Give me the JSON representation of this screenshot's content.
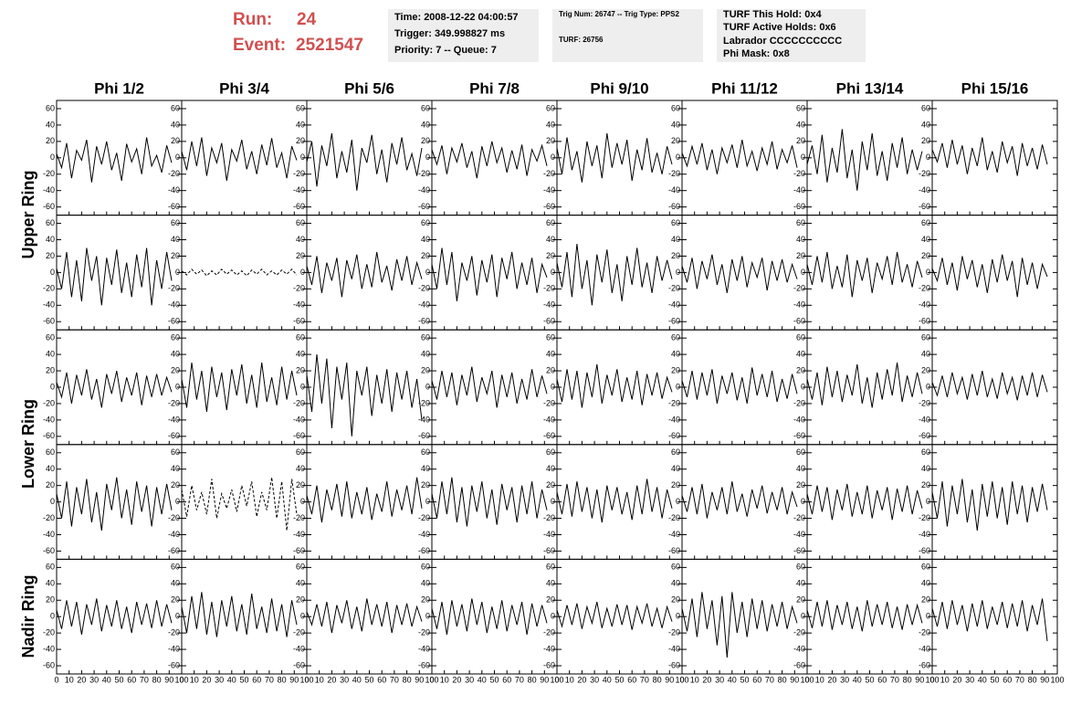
{
  "header": {
    "run_label": "Run:",
    "run": "24",
    "event_label": "Event:",
    "event": "2521547",
    "boxes": [
      [
        "Time: 2008-12-22 04:00:57",
        "Trigger: 349.998827 ms",
        "Priority: 7 -- Queue: 7"
      ],
      [
        "Trig Num: 26747 -- Trig Type: PPS2",
        "TURF: 26756"
      ],
      [
        "TURF This Hold: 0x4",
        "TURF Active Holds: 0x6",
        "Labrador CCCCCCCCCC",
        "Phi Mask: 0x8"
      ]
    ]
  },
  "chart_data": {
    "type": "line",
    "columns": [
      "Phi 1/2",
      "Phi 3/4",
      "Phi 5/6",
      "Phi 7/8",
      "Phi 9/10",
      "Phi 11/12",
      "Phi 13/14",
      "Phi 15/16"
    ],
    "ring_labels": [
      "Upper Ring",
      "Lower Ring",
      "Nadir Ring"
    ],
    "xlim": [
      0,
      100
    ],
    "xticks": [
      0,
      10,
      20,
      30,
      40,
      50,
      60,
      70,
      80,
      90,
      100
    ],
    "ylim": [
      -70,
      70
    ],
    "yticks": [
      -60,
      -40,
      -20,
      0,
      20,
      40,
      60
    ],
    "color": "#000000",
    "x": [
      0,
      4,
      8,
      12,
      16,
      20,
      24,
      28,
      32,
      36,
      40,
      44,
      48,
      52,
      56,
      60,
      64,
      68,
      72,
      76,
      80,
      84,
      88,
      92
    ],
    "panels": [
      {
        "values": [
          5,
          -12,
          18,
          -25,
          9,
          -3,
          22,
          -30,
          14,
          -8,
          20,
          -15,
          6,
          -28,
          17,
          -5,
          11,
          -20,
          25,
          -10,
          3,
          -18,
          15,
          -6
        ]
      },
      {
        "values": [
          8,
          -15,
          20,
          -10,
          25,
          -22,
          12,
          -6,
          18,
          -28,
          10,
          -4,
          22,
          -14,
          8,
          -20,
          16,
          -9,
          24,
          -12,
          6,
          -25,
          14,
          -3
        ]
      },
      {
        "values": [
          -5,
          20,
          -35,
          15,
          -10,
          30,
          -25,
          8,
          -18,
          22,
          -40,
          12,
          -6,
          28,
          -20,
          10,
          -30,
          18,
          -8,
          25,
          -15,
          5,
          -22,
          12
        ]
      },
      {
        "values": [
          10,
          -8,
          15,
          -20,
          12,
          -5,
          18,
          -12,
          8,
          -25,
          14,
          -10,
          20,
          -6,
          12,
          -18,
          9,
          -14,
          16,
          -22,
          10,
          -4,
          15,
          -10
        ]
      },
      {
        "values": [
          12,
          -20,
          25,
          -15,
          8,
          -30,
          20,
          -10,
          15,
          -25,
          30,
          -12,
          18,
          -8,
          22,
          -28,
          10,
          -15,
          24,
          -18,
          6,
          -20,
          14,
          -8
        ]
      },
      {
        "values": [
          6,
          -10,
          14,
          -8,
          18,
          -15,
          10,
          -20,
          12,
          -6,
          16,
          -12,
          22,
          -10,
          8,
          -16,
          12,
          -8,
          20,
          -14,
          10,
          -6,
          15,
          -12
        ]
      },
      {
        "values": [
          -8,
          15,
          -20,
          28,
          -30,
          12,
          -18,
          35,
          -25,
          10,
          -40,
          20,
          -15,
          30,
          -22,
          8,
          -28,
          18,
          -12,
          25,
          -20,
          10,
          -15,
          8
        ]
      },
      {
        "values": [
          10,
          -5,
          18,
          -12,
          22,
          -8,
          15,
          -20,
          12,
          -10,
          25,
          -15,
          8,
          -18,
          20,
          -6,
          14,
          -22,
          18,
          -10,
          12,
          -14,
          16,
          -8
        ]
      },
      {
        "values": [
          5,
          -20,
          25,
          -30,
          15,
          -35,
          30,
          -10,
          20,
          -40,
          18,
          -15,
          28,
          -25,
          12,
          -30,
          22,
          -18,
          30,
          -40,
          15,
          -20,
          25,
          -10
        ]
      },
      {
        "values": [
          2,
          -3,
          4,
          -2,
          3,
          -4,
          2,
          -3,
          4,
          -2,
          3,
          -3,
          2,
          -4,
          3,
          -2,
          4,
          -3,
          2,
          -3,
          3,
          -2,
          4,
          -3
        ],
        "dashed": true
      },
      {
        "values": [
          8,
          -15,
          20,
          -25,
          12,
          -10,
          18,
          -30,
          15,
          -8,
          22,
          -20,
          10,
          -18,
          25,
          -12,
          8,
          -22,
          16,
          -10,
          20,
          -15,
          12,
          -8
        ]
      },
      {
        "values": [
          10,
          -20,
          30,
          -15,
          25,
          -35,
          12,
          -10,
          20,
          -28,
          15,
          -12,
          22,
          -30,
          18,
          -8,
          25,
          -20,
          12,
          -15,
          18,
          -25,
          10,
          -6
        ]
      },
      {
        "values": [
          12,
          -18,
          25,
          -30,
          35,
          -20,
          15,
          -40,
          22,
          -12,
          28,
          -25,
          10,
          -35,
          20,
          -15,
          30,
          -18,
          12,
          -25,
          20,
          -10,
          15,
          -8
        ]
      },
      {
        "values": [
          8,
          -12,
          18,
          -20,
          14,
          -8,
          22,
          -15,
          10,
          -25,
          16,
          -10,
          20,
          -18,
          12,
          -6,
          18,
          -22,
          14,
          -10,
          16,
          -12,
          10,
          -8
        ]
      },
      {
        "values": [
          10,
          -15,
          20,
          -12,
          25,
          -20,
          8,
          -18,
          22,
          -30,
          15,
          -10,
          18,
          -25,
          12,
          -8,
          20,
          -15,
          25,
          -12,
          10,
          -18,
          14,
          -6
        ]
      },
      {
        "values": [
          5,
          -10,
          18,
          -15,
          12,
          -22,
          20,
          -8,
          15,
          -18,
          10,
          -25,
          16,
          -12,
          22,
          -10,
          14,
          -30,
          18,
          -15,
          12,
          -20,
          10,
          -5
        ]
      },
      {
        "values": [
          6,
          -12,
          18,
          -20,
          15,
          -10,
          22,
          -15,
          10,
          -25,
          16,
          -8,
          20,
          -18,
          12,
          -10,
          18,
          -22,
          14,
          -12,
          16,
          -10,
          12,
          -6
        ]
      },
      {
        "values": [
          10,
          -25,
          30,
          -15,
          20,
          -30,
          25,
          -12,
          18,
          -28,
          22,
          -10,
          28,
          -20,
          15,
          -25,
          30,
          -18,
          12,
          -22,
          25,
          -15,
          20,
          -10
        ]
      },
      {
        "values": [
          15,
          -30,
          40,
          -20,
          35,
          -50,
          25,
          -15,
          30,
          -60,
          20,
          -10,
          25,
          -35,
          15,
          -20,
          22,
          -30,
          18,
          -15,
          20,
          -25,
          10,
          -40
        ]
      },
      {
        "values": [
          8,
          -15,
          20,
          -12,
          18,
          -22,
          15,
          -10,
          25,
          -18,
          12,
          -8,
          20,
          -25,
          15,
          -12,
          18,
          -20,
          10,
          -15,
          22,
          -12,
          14,
          -8
        ]
      },
      {
        "values": [
          10,
          -18,
          22,
          -15,
          20,
          -25,
          18,
          -12,
          28,
          -20,
          15,
          -10,
          22,
          -18,
          12,
          -15,
          20,
          -22,
          16,
          -10,
          18,
          -14,
          12,
          -6
        ]
      },
      {
        "values": [
          8,
          -12,
          20,
          -15,
          18,
          -10,
          22,
          -20,
          14,
          -8,
          18,
          -16,
          12,
          -20,
          24,
          -10,
          16,
          -12,
          20,
          -18,
          10,
          -14,
          16,
          -8
        ]
      },
      {
        "values": [
          10,
          -15,
          18,
          -22,
          25,
          -12,
          20,
          -18,
          15,
          -10,
          28,
          -20,
          12,
          -25,
          18,
          -15,
          22,
          -10,
          30,
          -18,
          14,
          -12,
          18,
          -8
        ]
      },
      {
        "values": [
          6,
          -10,
          14,
          -12,
          18,
          -8,
          12,
          -15,
          16,
          -10,
          20,
          -12,
          10,
          -14,
          18,
          -8,
          12,
          -16,
          14,
          -10,
          18,
          -12,
          15,
          -6
        ]
      },
      {
        "values": [
          10,
          -20,
          25,
          -30,
          18,
          -15,
          28,
          -25,
          12,
          -35,
          22,
          -10,
          30,
          -20,
          15,
          -28,
          25,
          -12,
          20,
          -30,
          18,
          -15,
          22,
          -10
        ]
      },
      {
        "values": [
          15,
          -18,
          20,
          -10,
          12,
          -15,
          28,
          -20,
          10,
          -8,
          15,
          -12,
          20,
          -5,
          25,
          -18,
          12,
          -10,
          30,
          -20,
          25,
          -35,
          28,
          -15
        ],
        "dashed": true
      },
      {
        "values": [
          8,
          -15,
          20,
          -25,
          15,
          -10,
          22,
          -18,
          25,
          -20,
          12,
          -15,
          18,
          -22,
          10,
          -12,
          25,
          -18,
          15,
          -10,
          20,
          -15,
          30,
          -8
        ]
      },
      {
        "values": [
          10,
          -20,
          25,
          -15,
          30,
          -25,
          18,
          -30,
          20,
          -12,
          25,
          -20,
          15,
          -28,
          22,
          -10,
          18,
          -25,
          20,
          -15,
          25,
          -20,
          15,
          -10
        ]
      },
      {
        "values": [
          12,
          -15,
          22,
          -18,
          25,
          -12,
          18,
          -20,
          15,
          -25,
          20,
          -10,
          18,
          -15,
          12,
          -22,
          20,
          -15,
          28,
          -12,
          18,
          -20,
          15,
          -8
        ]
      },
      {
        "values": [
          8,
          -12,
          18,
          -15,
          22,
          -20,
          12,
          -10,
          18,
          -15,
          25,
          -12,
          10,
          -18,
          15,
          -8,
          20,
          -14,
          12,
          -10,
          18,
          -15,
          12,
          -6
        ]
      },
      {
        "values": [
          10,
          -15,
          20,
          -12,
          18,
          -22,
          15,
          -10,
          22,
          -18,
          12,
          -15,
          20,
          -20,
          14,
          -10,
          18,
          -22,
          16,
          -12,
          20,
          -15,
          14,
          -8
        ]
      },
      {
        "values": [
          12,
          -20,
          25,
          -30,
          20,
          -15,
          28,
          -25,
          15,
          -35,
          22,
          -18,
          25,
          -20,
          18,
          -28,
          25,
          -15,
          20,
          -25,
          18,
          -12,
          22,
          -10
        ]
      },
      {
        "values": [
          8,
          -15,
          20,
          -12,
          18,
          -22,
          15,
          -10,
          22,
          -18,
          14,
          -12,
          20,
          -15,
          12,
          -20,
          18,
          -10,
          16,
          -14,
          20,
          -12,
          15,
          -8
        ]
      },
      {
        "values": [
          12,
          -20,
          25,
          -15,
          30,
          -22,
          18,
          -25,
          20,
          -12,
          25,
          -18,
          15,
          -22,
          28,
          -15,
          12,
          -20,
          22,
          -18,
          15,
          -25,
          20,
          -10
        ]
      },
      {
        "values": [
          6,
          -10,
          15,
          -12,
          18,
          -20,
          14,
          -8,
          20,
          -15,
          12,
          -18,
          22,
          -10,
          15,
          -12,
          18,
          -20,
          14,
          -10,
          16,
          -12,
          12,
          -6
        ]
      },
      {
        "values": [
          10,
          -15,
          18,
          -22,
          20,
          -12,
          15,
          -18,
          22,
          -10,
          18,
          -20,
          12,
          -15,
          20,
          -18,
          14,
          -10,
          18,
          -22,
          16,
          -12,
          14,
          -8
        ]
      },
      {
        "values": [
          8,
          -12,
          14,
          -10,
          16,
          -15,
          12,
          -8,
          18,
          -14,
          10,
          -12,
          15,
          -10,
          14,
          -16,
          12,
          -8,
          16,
          -12,
          10,
          -14,
          12,
          -6
        ]
      },
      {
        "values": [
          10,
          -18,
          22,
          -25,
          30,
          -15,
          20,
          -35,
          25,
          -50,
          30,
          -20,
          18,
          -25,
          22,
          -15,
          20,
          -18,
          15,
          -12,
          18,
          -15,
          12,
          -8
        ]
      },
      {
        "values": [
          8,
          -14,
          18,
          -12,
          20,
          -16,
          14,
          -10,
          18,
          -15,
          12,
          -18,
          20,
          -12,
          15,
          -10,
          18,
          -14,
          12,
          -16,
          15,
          -10,
          14,
          -8
        ]
      },
      {
        "values": [
          10,
          -12,
          18,
          -15,
          20,
          -10,
          14,
          -18,
          16,
          -12,
          20,
          -15,
          12,
          -10,
          18,
          -14,
          16,
          -12,
          20,
          -18,
          14,
          -10,
          22,
          -30
        ]
      }
    ]
  }
}
